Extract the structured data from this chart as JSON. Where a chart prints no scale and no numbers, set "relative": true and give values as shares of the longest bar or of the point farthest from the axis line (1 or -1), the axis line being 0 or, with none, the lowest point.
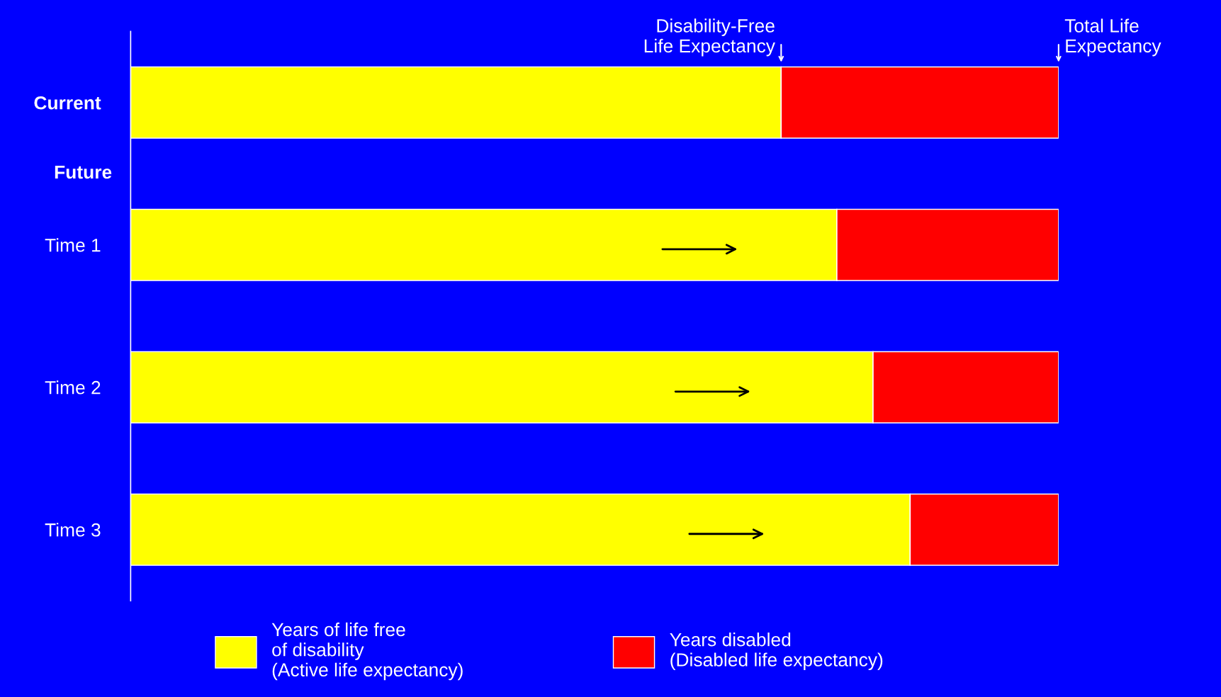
{
  "chart_data": {
    "type": "bar",
    "orientation": "horizontal",
    "stacked": true,
    "relative": true,
    "categories": [
      "Current",
      "Time 1",
      "Time 2",
      "Time 3"
    ],
    "series": [
      {
        "name": "Years of life free\nof disability\n(Active life expectancy)",
        "color": "#ffff00",
        "values": [
          0.701,
          0.761,
          0.8,
          0.84
        ]
      },
      {
        "name": "Years disabled\n(Disabled life expectancy)",
        "color": "#ff0000",
        "values": [
          0.299,
          0.239,
          0.2,
          0.16
        ]
      }
    ],
    "annotations": [
      {
        "text": "Disability-Free\nLife Expectancy",
        "x": 0.701,
        "y": "Current"
      },
      {
        "text": "Total Life\nExpectancy",
        "x": 1,
        "y": "Current"
      },
      "Future"
    ],
    "legend": "bottom",
    "grid": false
  }
}
